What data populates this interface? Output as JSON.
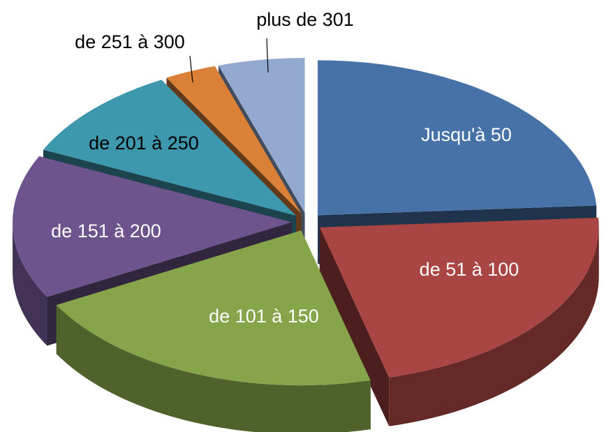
{
  "chart_data": {
    "type": "pie3d",
    "categories": [
      "Jusqu'à 50",
      "de 51 à 100",
      "de 101 à 150",
      "de 151 à 200",
      "de 201 à 250",
      "de 251 à 300",
      "plus de 301"
    ],
    "values": [
      24,
      22,
      21,
      15,
      10,
      3,
      5
    ],
    "colors": [
      "#4672a8",
      "#a94543",
      "#86a44a",
      "#6e548d",
      "#3d97ad",
      "#da8137",
      "#93a9cf"
    ]
  }
}
